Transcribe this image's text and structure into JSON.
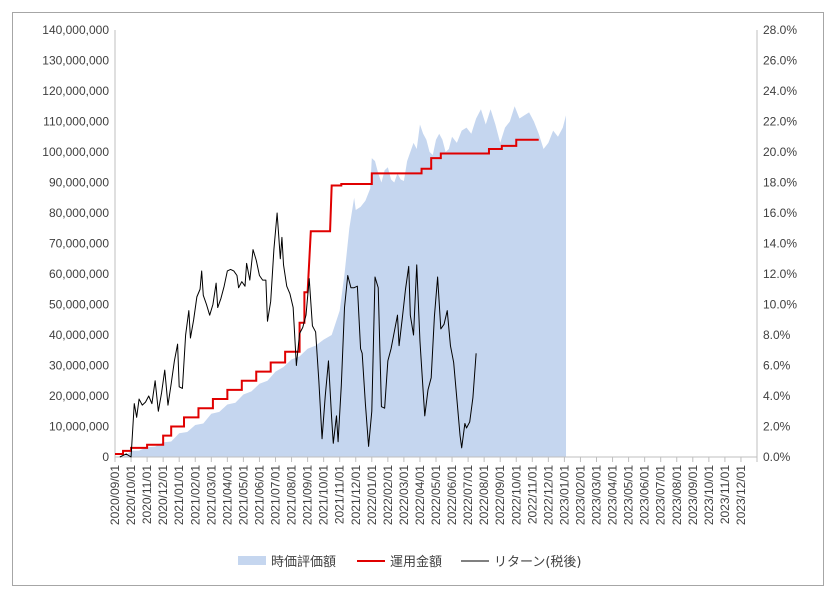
{
  "chart_data": {
    "type": "combo",
    "y_left": {
      "min": 0,
      "max": 140000000,
      "step": 10000000,
      "tick_labels": [
        "0",
        "10,000,000",
        "20,000,000",
        "30,000,000",
        "40,000,000",
        "50,000,000",
        "60,000,000",
        "70,000,000",
        "80,000,000",
        "90,000,000",
        "100,000,000",
        "110,000,000",
        "120,000,000",
        "130,000,000",
        "140,000,000"
      ]
    },
    "y_right": {
      "min": 0,
      "max": 28,
      "step": 2,
      "tick_labels": [
        "0.0%",
        "2.0%",
        "4.0%",
        "6.0%",
        "8.0%",
        "10.0%",
        "12.0%",
        "14.0%",
        "16.0%",
        "18.0%",
        "20.0%",
        "22.0%",
        "24.0%",
        "26.0%",
        "28.0%"
      ]
    },
    "x_categories": [
      "2020/09/01",
      "2020/10/01",
      "2020/11/01",
      "2020/12/01",
      "2021/01/01",
      "2021/02/01",
      "2021/03/01",
      "2021/04/01",
      "2021/05/01",
      "2021/06/01",
      "2021/07/01",
      "2021/08/01",
      "2021/09/01",
      "2021/10/01",
      "2021/11/01",
      "2021/12/01",
      "2022/01/01",
      "2022/02/01",
      "2022/03/01",
      "2022/04/01",
      "2022/05/01",
      "2022/06/01",
      "2022/07/01",
      "2022/08/01",
      "2022/09/01",
      "2022/10/01",
      "2022/11/01",
      "2022/12/01",
      "2023/01/01",
      "2023/02/01",
      "2023/03/01",
      "2023/04/01",
      "2023/05/01",
      "2023/06/01",
      "2023/07/01",
      "2023/08/01",
      "2023/09/01",
      "2023/10/01",
      "2023/11/01",
      "2023/12/01"
    ],
    "series": [
      {
        "name": "時価評価額",
        "kind": "area",
        "axis": "left",
        "color": "#c5d6ef",
        "points": [
          [
            0,
            0
          ],
          [
            0.5,
            0
          ],
          [
            0.8,
            1000000
          ],
          [
            1.0,
            2000000
          ],
          [
            1.5,
            2100000
          ],
          [
            2.0,
            3200000
          ],
          [
            2.5,
            3400000
          ],
          [
            3.0,
            4800000
          ],
          [
            3.5,
            5100000
          ],
          [
            4.0,
            7800000
          ],
          [
            4.5,
            8200000
          ],
          [
            5.0,
            10500000
          ],
          [
            5.5,
            11000000
          ],
          [
            6.0,
            14200000
          ],
          [
            6.5,
            14800000
          ],
          [
            7.0,
            17200000
          ],
          [
            7.5,
            17800000
          ],
          [
            8.0,
            20500000
          ],
          [
            8.5,
            21500000
          ],
          [
            9.0,
            24000000
          ],
          [
            9.5,
            25000000
          ],
          [
            10.0,
            28000000
          ],
          [
            10.5,
            29500000
          ],
          [
            11.0,
            32000000
          ],
          [
            11.5,
            33000000
          ],
          [
            12.0,
            35500000
          ],
          [
            12.5,
            36500000
          ],
          [
            13.0,
            38500000
          ],
          [
            13.5,
            40000000
          ],
          [
            14.0,
            48000000
          ],
          [
            14.3,
            60000000
          ],
          [
            14.6,
            75000000
          ],
          [
            14.9,
            85000000
          ],
          [
            15.0,
            81000000
          ],
          [
            15.3,
            82000000
          ],
          [
            15.6,
            84000000
          ],
          [
            15.9,
            88000000
          ],
          [
            16.0,
            98000000
          ],
          [
            16.2,
            97000000
          ],
          [
            16.4,
            93000000
          ],
          [
            16.6,
            90000000
          ],
          [
            16.8,
            94000000
          ],
          [
            17.0,
            95000000
          ],
          [
            17.2,
            91000000
          ],
          [
            17.4,
            90000000
          ],
          [
            17.6,
            93000000
          ],
          [
            17.8,
            91000000
          ],
          [
            18.0,
            90500000
          ],
          [
            18.2,
            97000000
          ],
          [
            18.4,
            100000000
          ],
          [
            18.6,
            103000000
          ],
          [
            18.8,
            101000000
          ],
          [
            19.0,
            109000000
          ],
          [
            19.2,
            106000000
          ],
          [
            19.4,
            104000000
          ],
          [
            19.6,
            100000000
          ],
          [
            19.8,
            99000000
          ],
          [
            20.0,
            104000000
          ],
          [
            20.2,
            106000000
          ],
          [
            20.4,
            104000000
          ],
          [
            20.6,
            100000000
          ],
          [
            20.8,
            101000000
          ],
          [
            21.0,
            105000000
          ],
          [
            21.3,
            103000000
          ],
          [
            21.6,
            107000000
          ],
          [
            21.9,
            108000000
          ],
          [
            22.2,
            106000000
          ],
          [
            22.5,
            111000000
          ],
          [
            22.8,
            114000000
          ],
          [
            23.1,
            109000000
          ],
          [
            23.4,
            114000000
          ],
          [
            23.7,
            109000000
          ],
          [
            24.0,
            103000000
          ],
          [
            24.3,
            108000000
          ],
          [
            24.6,
            110000000
          ],
          [
            24.9,
            115000000
          ],
          [
            25.2,
            111000000
          ],
          [
            25.5,
            112000000
          ],
          [
            25.8,
            113000000
          ],
          [
            26.1,
            110000000
          ],
          [
            26.4,
            106000000
          ],
          [
            26.7,
            101000000
          ],
          [
            27.0,
            103000000
          ],
          [
            27.3,
            107000000
          ],
          [
            27.6,
            105000000
          ],
          [
            27.9,
            108000000
          ],
          [
            28.1,
            112000000
          ]
        ]
      },
      {
        "name": "運用金額",
        "kind": "step",
        "axis": "left",
        "color": "#e00000",
        "points": [
          [
            0,
            1000000
          ],
          [
            0.5,
            1000000
          ],
          [
            0.5,
            2000000
          ],
          [
            1.0,
            2000000
          ],
          [
            1.0,
            3000000
          ],
          [
            2.0,
            3000000
          ],
          [
            2.0,
            4000000
          ],
          [
            3.0,
            4000000
          ],
          [
            3.0,
            7000000
          ],
          [
            3.5,
            7000000
          ],
          [
            3.5,
            10000000
          ],
          [
            4.3,
            10000000
          ],
          [
            4.3,
            13000000
          ],
          [
            5.2,
            13000000
          ],
          [
            5.2,
            16000000
          ],
          [
            6.1,
            16000000
          ],
          [
            6.1,
            19000000
          ],
          [
            7.0,
            19000000
          ],
          [
            7.0,
            22000000
          ],
          [
            7.9,
            22000000
          ],
          [
            7.9,
            25000000
          ],
          [
            8.8,
            25000000
          ],
          [
            8.8,
            28000000
          ],
          [
            9.7,
            28000000
          ],
          [
            9.7,
            31000000
          ],
          [
            10.6,
            31000000
          ],
          [
            10.6,
            34500000
          ],
          [
            11.5,
            34500000
          ],
          [
            11.5,
            44000000
          ],
          [
            11.8,
            44000000
          ],
          [
            11.8,
            54000000
          ],
          [
            12.0,
            54000000
          ],
          [
            12.2,
            74000000
          ],
          [
            13.4,
            74000000
          ],
          [
            13.5,
            89000000
          ],
          [
            14.1,
            89000000
          ],
          [
            14.1,
            89500000
          ],
          [
            16.0,
            89500000
          ],
          [
            16.0,
            93000000
          ],
          [
            19.1,
            93000000
          ],
          [
            19.1,
            94500000
          ],
          [
            19.7,
            94500000
          ],
          [
            19.7,
            98000000
          ],
          [
            20.3,
            98000000
          ],
          [
            20.3,
            99500000
          ],
          [
            23.3,
            99500000
          ],
          [
            23.3,
            101000000
          ],
          [
            24.1,
            101000000
          ],
          [
            24.1,
            102000000
          ],
          [
            25.0,
            102000000
          ],
          [
            25.0,
            104000000
          ],
          [
            26.4,
            104000000
          ]
        ]
      },
      {
        "name": "リターン(税後)",
        "kind": "line",
        "axis": "right",
        "color": "#000000",
        "points": [
          [
            0.3,
            0
          ],
          [
            0.7,
            0.2
          ],
          [
            1.0,
            0
          ],
          [
            1.2,
            3.5
          ],
          [
            1.35,
            2.6
          ],
          [
            1.5,
            3.8
          ],
          [
            1.7,
            3.4
          ],
          [
            1.9,
            3.6
          ],
          [
            2.1,
            4.0
          ],
          [
            2.3,
            3.5
          ],
          [
            2.5,
            5.0
          ],
          [
            2.7,
            3.0
          ],
          [
            2.9,
            4.2
          ],
          [
            3.1,
            5.7
          ],
          [
            3.3,
            3.4
          ],
          [
            3.5,
            4.8
          ],
          [
            3.7,
            6.3
          ],
          [
            3.9,
            7.4
          ],
          [
            4.0,
            4.6
          ],
          [
            4.2,
            4.5
          ],
          [
            4.4,
            8.0
          ],
          [
            4.6,
            9.6
          ],
          [
            4.7,
            7.8
          ],
          [
            4.9,
            9.0
          ],
          [
            5.1,
            10.5
          ],
          [
            5.3,
            11.0
          ],
          [
            5.4,
            12.2
          ],
          [
            5.5,
            10.6
          ],
          [
            5.7,
            10.0
          ],
          [
            5.9,
            9.3
          ],
          [
            6.1,
            10.0
          ],
          [
            6.3,
            11.4
          ],
          [
            6.4,
            9.8
          ],
          [
            6.6,
            10.4
          ],
          [
            6.8,
            11.2
          ],
          [
            7.0,
            12.2
          ],
          [
            7.2,
            12.3
          ],
          [
            7.4,
            12.2
          ],
          [
            7.6,
            11.9
          ],
          [
            7.7,
            11.1
          ],
          [
            7.9,
            11.5
          ],
          [
            8.1,
            11.2
          ],
          [
            8.2,
            12.7
          ],
          [
            8.4,
            11.6
          ],
          [
            8.6,
            13.6
          ],
          [
            8.8,
            12.9
          ],
          [
            9.0,
            11.9
          ],
          [
            9.2,
            11.6
          ],
          [
            9.4,
            11.6
          ],
          [
            9.5,
            8.9
          ],
          [
            9.7,
            10.2
          ],
          [
            9.9,
            13.6
          ],
          [
            10.1,
            16.0
          ],
          [
            10.3,
            13.0
          ],
          [
            10.4,
            14.4
          ],
          [
            10.5,
            12.6
          ],
          [
            10.7,
            11.2
          ],
          [
            10.9,
            10.7
          ],
          [
            11.1,
            9.8
          ],
          [
            11.3,
            6.0
          ],
          [
            11.5,
            8.1
          ],
          [
            11.7,
            8.5
          ],
          [
            11.9,
            9.3
          ],
          [
            12.1,
            11.7
          ],
          [
            12.3,
            8.6
          ],
          [
            12.5,
            8.2
          ],
          [
            12.7,
            5.0
          ],
          [
            12.9,
            1.2
          ],
          [
            13.1,
            4.0
          ],
          [
            13.3,
            6.3
          ],
          [
            13.5,
            2.5
          ],
          [
            13.6,
            0.9
          ],
          [
            13.8,
            2.7
          ],
          [
            13.9,
            1.0
          ],
          [
            14.1,
            4.7
          ],
          [
            14.3,
            9.8
          ],
          [
            14.5,
            11.9
          ],
          [
            14.7,
            11.1
          ],
          [
            14.9,
            11.1
          ],
          [
            15.1,
            11.2
          ],
          [
            15.3,
            7.1
          ],
          [
            15.4,
            6.8
          ],
          [
            15.6,
            3.5
          ],
          [
            15.8,
            0.7
          ],
          [
            16.0,
            3.0
          ],
          [
            16.2,
            11.8
          ],
          [
            16.4,
            11.1
          ],
          [
            16.6,
            3.3
          ],
          [
            16.8,
            3.2
          ],
          [
            17.0,
            6.3
          ],
          [
            17.2,
            7.1
          ],
          [
            17.4,
            8.2
          ],
          [
            17.6,
            9.3
          ],
          [
            17.7,
            7.3
          ],
          [
            17.9,
            9.1
          ],
          [
            18.1,
            11.0
          ],
          [
            18.3,
            12.5
          ],
          [
            18.4,
            9.3
          ],
          [
            18.6,
            8.0
          ],
          [
            18.8,
            12.6
          ],
          [
            19.0,
            7.6
          ],
          [
            19.2,
            4.3
          ],
          [
            19.3,
            2.7
          ],
          [
            19.5,
            4.4
          ],
          [
            19.7,
            5.2
          ],
          [
            19.9,
            9.2
          ],
          [
            20.1,
            11.8
          ],
          [
            20.3,
            8.4
          ],
          [
            20.5,
            8.7
          ],
          [
            20.7,
            9.6
          ],
          [
            20.9,
            7.3
          ],
          [
            21.1,
            6.2
          ],
          [
            21.3,
            3.8
          ],
          [
            21.5,
            1.4
          ],
          [
            21.6,
            0.6
          ],
          [
            21.8,
            2.2
          ],
          [
            21.9,
            1.9
          ],
          [
            22.1,
            2.3
          ],
          [
            22.3,
            3.9
          ],
          [
            22.5,
            6.8
          ]
        ]
      }
    ],
    "legend": {
      "position": "bottom",
      "items": [
        {
          "label": "時価評価額",
          "symbol": "area",
          "color": "#c5d6ef"
        },
        {
          "label": "運用金額",
          "symbol": "line",
          "color": "#e00000"
        },
        {
          "label": "リターン(税後)",
          "symbol": "line",
          "color": "#000000"
        }
      ]
    },
    "grid": {
      "horizontal": false,
      "vertical": false
    }
  }
}
